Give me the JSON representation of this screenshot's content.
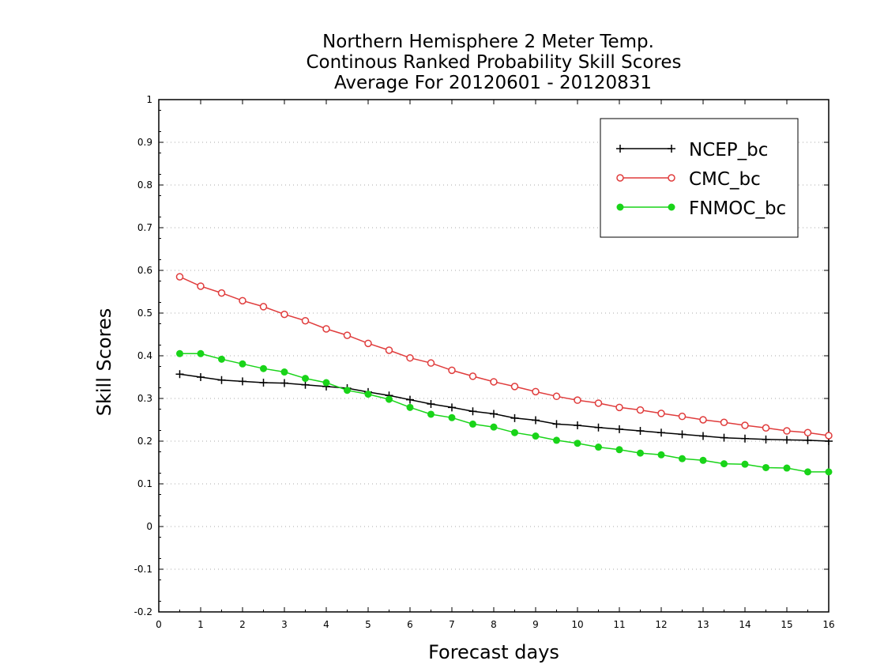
{
  "chart_data": {
    "type": "line",
    "title_lines": [
      "Northern Hemisphere 2 Meter Temp.",
      "Continous Ranked Probability Skill Scores",
      "Average For 20120601 - 20120831"
    ],
    "xlabel": "Forecast days",
    "ylabel": "Skill Scores",
    "xlim": [
      0,
      16
    ],
    "ylim": [
      -0.2,
      1
    ],
    "xticks": [
      0,
      1,
      2,
      3,
      4,
      5,
      6,
      7,
      8,
      9,
      10,
      11,
      12,
      13,
      14,
      15,
      16
    ],
    "yticks": [
      -0.2,
      -0.1,
      0,
      0.1,
      0.2,
      0.3,
      0.4,
      0.5,
      0.6,
      0.7,
      0.8,
      0.9,
      1
    ],
    "ytick_labels": [
      "-0.2",
      "-0.1",
      "0",
      "0.1",
      "0.2",
      "0.3",
      "0.4",
      "0.5",
      "0.6",
      "0.7",
      "0.8",
      "0.9",
      "1"
    ],
    "grid": "horizontal-dotted",
    "legend_position": "top-right",
    "x": [
      0.5,
      1.0,
      1.5,
      2.0,
      2.5,
      3.0,
      3.5,
      4.0,
      4.5,
      5.0,
      5.5,
      6.0,
      6.5,
      7.0,
      7.5,
      8.0,
      8.5,
      9.0,
      9.5,
      10.0,
      10.5,
      11.0,
      11.5,
      12.0,
      12.5,
      13.0,
      13.5,
      14.0,
      14.5,
      15.0,
      15.5,
      16.0
    ],
    "series": [
      {
        "name": "NCEP_bc",
        "color": "#000000",
        "marker": "plus",
        "values": [
          0.357,
          0.35,
          0.343,
          0.34,
          0.337,
          0.336,
          0.332,
          0.328,
          0.324,
          0.315,
          0.307,
          0.297,
          0.287,
          0.279,
          0.27,
          0.264,
          0.254,
          0.249,
          0.24,
          0.237,
          0.232,
          0.228,
          0.224,
          0.22,
          0.216,
          0.212,
          0.208,
          0.206,
          0.204,
          0.203,
          0.202,
          0.2
        ]
      },
      {
        "name": "CMC_bc",
        "color": "#e03c3c",
        "marker": "open-circle",
        "values": [
          0.585,
          0.563,
          0.547,
          0.529,
          0.515,
          0.497,
          0.482,
          0.463,
          0.448,
          0.429,
          0.413,
          0.395,
          0.383,
          0.366,
          0.352,
          0.339,
          0.328,
          0.316,
          0.305,
          0.296,
          0.289,
          0.279,
          0.273,
          0.265,
          0.258,
          0.25,
          0.244,
          0.237,
          0.231,
          0.224,
          0.22,
          0.213
        ]
      },
      {
        "name": "FNMOC_bc",
        "color": "#19d419",
        "marker": "filled-circle",
        "values": [
          0.405,
          0.405,
          0.392,
          0.381,
          0.37,
          0.362,
          0.347,
          0.337,
          0.319,
          0.31,
          0.298,
          0.279,
          0.263,
          0.255,
          0.24,
          0.233,
          0.22,
          0.212,
          0.202,
          0.195,
          0.186,
          0.18,
          0.172,
          0.168,
          0.159,
          0.155,
          0.147,
          0.146,
          0.138,
          0.137,
          0.128,
          0.128
        ]
      }
    ]
  }
}
